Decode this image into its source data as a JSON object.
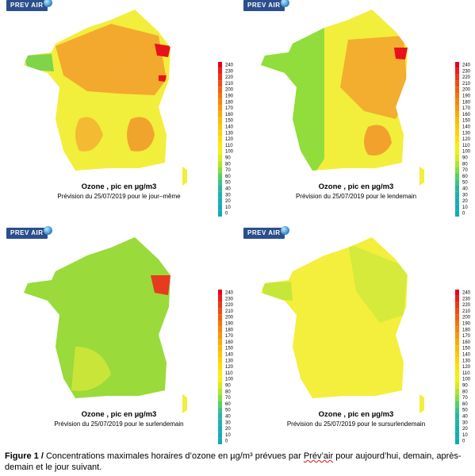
{
  "brand": "PREV AIR",
  "legend_ticks": [
    "240",
    "230",
    "220",
    "210",
    "200",
    "190",
    "180",
    "170",
    "160",
    "150",
    "140",
    "130",
    "120",
    "110",
    "100",
    "90",
    "80",
    "70",
    "60",
    "50",
    "40",
    "30",
    "20",
    "10",
    "0"
  ],
  "legend_colors": [
    "#e8001c",
    "#ec1d18",
    "#f03516",
    "#f44a12",
    "#f65e0e",
    "#f8720b",
    "#f98509",
    "#fa9707",
    "#fbaa06",
    "#fcbb05",
    "#fcc705",
    "#fdd305",
    "#fde006",
    "#fdeb08",
    "#f2f20c",
    "#d4ee18",
    "#aee828",
    "#86df3a",
    "#54d260",
    "#3ac38a",
    "#29b89c",
    "#1fb3a8",
    "#18afb0",
    "#15acb4",
    "#13aab6"
  ],
  "panels": [
    {
      "title": "Ozone , pic en µg/m3",
      "subtitle": "Prévision du 25/07/2019 pour le jour–même",
      "variant": "p1"
    },
    {
      "title": "Ozone , pic en µg/m3",
      "subtitle": "Prévision du 25/07/2019 pour le lendemain",
      "variant": "p2"
    },
    {
      "title": "Ozone , pic en µg/m3",
      "subtitle": "Prévision du 25/07/2019 pour le surlendemain",
      "variant": "p3"
    },
    {
      "title": "Ozone , pic en µg/m3",
      "subtitle": "Prévision du 25/07/2019 pour le sursurlendemain",
      "variant": "p4"
    }
  ],
  "caption": {
    "label": "Figure 1 /",
    "text_before": " Concentrations maximales horaires d’ozone en µg/m³ prévues par ",
    "link": "Prév’air",
    "text_after": " pour aujourd’hui, demain, après-demain et le jour suivant."
  }
}
